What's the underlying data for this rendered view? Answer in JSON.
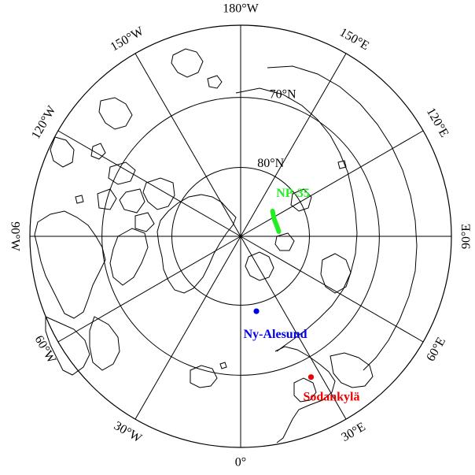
{
  "map": {
    "projection": "north-polar-stereographic",
    "meridian_labels": [
      {
        "lon": 180,
        "text": "180°W"
      },
      {
        "lon": -150,
        "text": "150°W"
      },
      {
        "lon": -120,
        "text": "120°W"
      },
      {
        "lon": -90,
        "text": "90°W"
      },
      {
        "lon": -60,
        "text": "60°W"
      },
      {
        "lon": -30,
        "text": "30°W"
      },
      {
        "lon": 0,
        "text": "0°"
      },
      {
        "lon": 30,
        "text": "30°E"
      },
      {
        "lon": 60,
        "text": "60°E"
      },
      {
        "lon": 90,
        "text": "90°E"
      },
      {
        "lon": 120,
        "text": "120°E"
      },
      {
        "lon": 150,
        "text": "150°E"
      }
    ],
    "parallel_labels": [
      {
        "lat": 70,
        "text": "70°N"
      },
      {
        "lat": 80,
        "text": "80°N"
      }
    ],
    "sites": [
      {
        "name": "NP-35",
        "color": "#22ee22",
        "lat": 84.5,
        "lon": 112
      },
      {
        "name": "Ny-Alesund",
        "color": "#0000ee",
        "lat": 78.9,
        "lon": 11.9
      },
      {
        "name": "Sodankylä",
        "color": "#ee0000",
        "lat": 67.4,
        "lon": 26.6
      }
    ]
  }
}
